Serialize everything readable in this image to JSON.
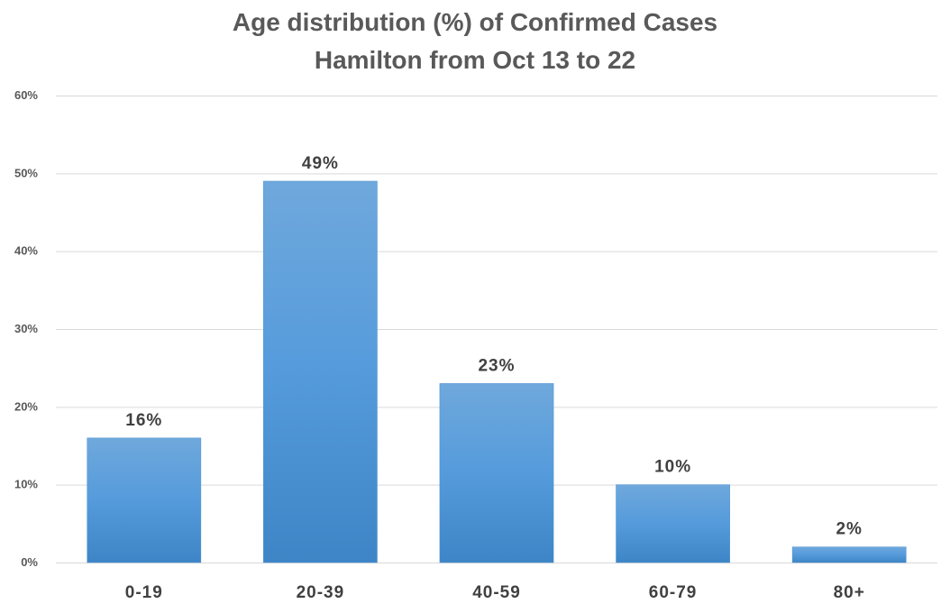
{
  "chart_data": {
    "type": "bar",
    "title": "Age distribution (%) of Confirmed Cases",
    "subtitle": "Hamilton from Oct 13 to 22",
    "categories": [
      "0-19",
      "20-39",
      "40-59",
      "60-79",
      "80+"
    ],
    "values": [
      16,
      49,
      23,
      10,
      2
    ],
    "data_labels": [
      "16%",
      "49%",
      "23%",
      "10%",
      "2%"
    ],
    "y_ticks": [
      "0%",
      "10%",
      "20%",
      "30%",
      "40%",
      "50%",
      "60%"
    ],
    "ylim": [
      0,
      60
    ],
    "y_tick_step": 10,
    "grid": true,
    "legend": "none",
    "bar_color_top": "#6fa8dc",
    "bar_color_bottom": "#3d85c6"
  }
}
